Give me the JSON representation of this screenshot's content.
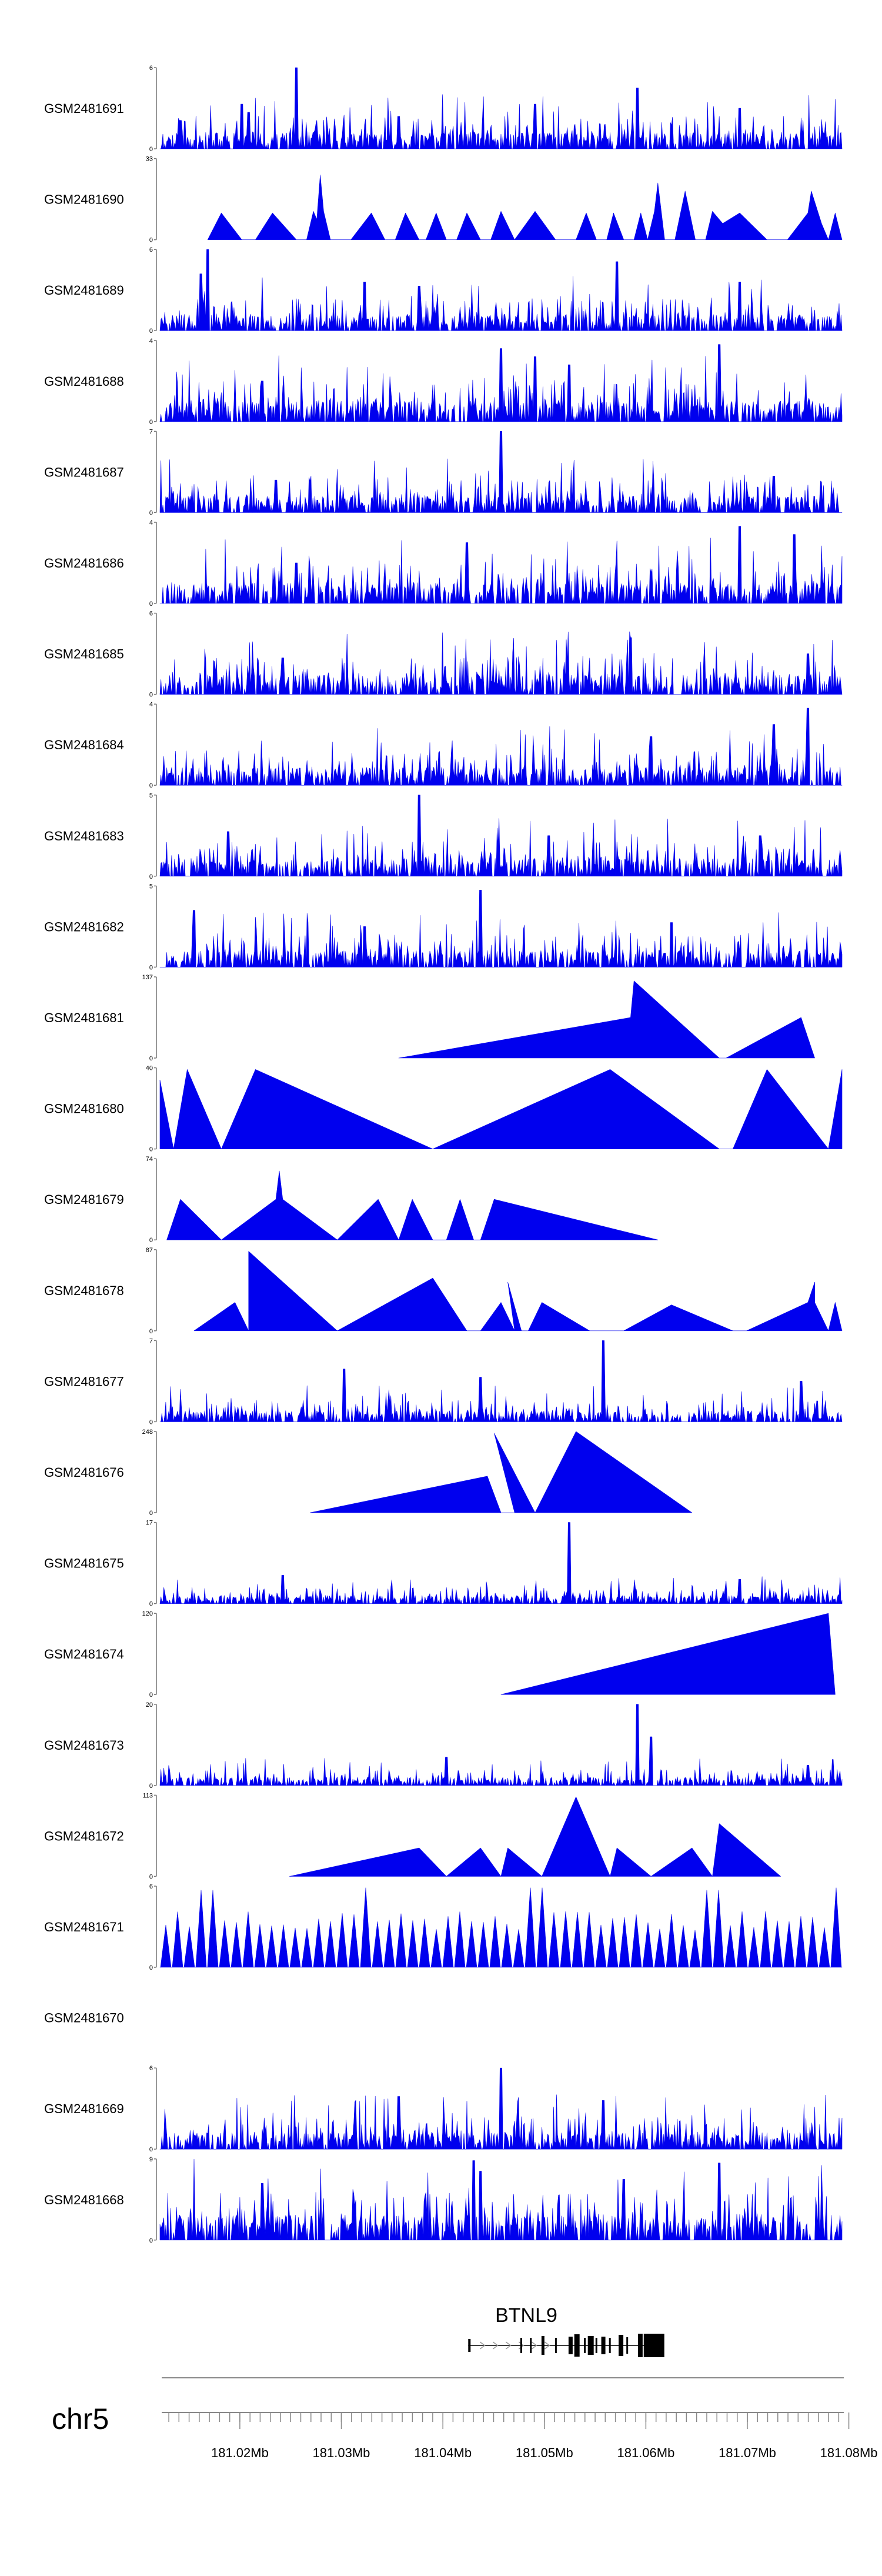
{
  "chart_data": {
    "type": "area",
    "title": "",
    "xlabel": "",
    "ylabel": "",
    "chromosome": "chr5",
    "gene": "BTNL9",
    "gene_region_mb": [
      181.0425,
      181.0615
    ],
    "xlim_mb": [
      181.0123,
      181.0795
    ],
    "x_ticks": [
      "181.02Mb",
      "181.03Mb",
      "181.04Mb",
      "181.05Mb",
      "181.06Mb",
      "181.07Mb",
      "181.08Mb"
    ],
    "x_tick_values_mb": [
      181.02,
      181.03,
      181.04,
      181.05,
      181.06,
      181.07,
      181.08
    ],
    "fill_color": "#0000ee",
    "tracks": [
      {
        "name": "GSM2481691",
        "ymax_label": "6",
        "ymin_label": "0",
        "ymax": 6,
        "style": "dense",
        "seed": 11,
        "base": 0.12,
        "peaks": [
          [
            0.03,
            0.35
          ],
          [
            0.12,
            0.55
          ],
          [
            0.13,
            0.45
          ],
          [
            0.2,
            1.0
          ],
          [
            0.35,
            0.4
          ],
          [
            0.55,
            0.55
          ],
          [
            0.7,
            0.75
          ],
          [
            0.85,
            0.5
          ]
        ]
      },
      {
        "name": "GSM2481690",
        "ymax_label": "33",
        "ymin_label": "0",
        "ymax": 33,
        "style": "triangles",
        "points": [
          [
            0.07,
            0
          ],
          [
            0.09,
            0.33
          ],
          [
            0.12,
            0
          ],
          [
            0.14,
            0
          ],
          [
            0.165,
            0.33
          ],
          [
            0.2,
            0
          ],
          [
            0.215,
            0
          ],
          [
            0.225,
            0.35
          ],
          [
            0.23,
            0.25
          ],
          [
            0.235,
            0.8
          ],
          [
            0.24,
            0.35
          ],
          [
            0.25,
            0
          ],
          [
            0.28,
            0
          ],
          [
            0.31,
            0.33
          ],
          [
            0.33,
            0
          ],
          [
            0.345,
            0
          ],
          [
            0.36,
            0.33
          ],
          [
            0.38,
            0
          ],
          [
            0.39,
            0
          ],
          [
            0.405,
            0.33
          ],
          [
            0.42,
            0
          ],
          [
            0.435,
            0
          ],
          [
            0.45,
            0.33
          ],
          [
            0.47,
            0
          ],
          [
            0.485,
            0
          ],
          [
            0.5,
            0.35
          ],
          [
            0.52,
            0
          ],
          [
            0.55,
            0.35
          ],
          [
            0.58,
            0
          ],
          [
            0.61,
            0
          ],
          [
            0.625,
            0.33
          ],
          [
            0.64,
            0
          ],
          [
            0.655,
            0
          ],
          [
            0.665,
            0.33
          ],
          [
            0.68,
            0
          ],
          [
            0.695,
            0
          ],
          [
            0.705,
            0.33
          ],
          [
            0.715,
            0
          ],
          [
            0.725,
            0.35
          ],
          [
            0.73,
            0.7
          ],
          [
            0.74,
            0
          ],
          [
            0.755,
            0
          ],
          [
            0.77,
            0.6
          ],
          [
            0.785,
            0
          ],
          [
            0.8,
            0
          ],
          [
            0.81,
            0.35
          ],
          [
            0.825,
            0.2
          ],
          [
            0.85,
            0.33
          ],
          [
            0.89,
            0
          ],
          [
            0.92,
            0
          ],
          [
            0.95,
            0.33
          ],
          [
            0.955,
            0.6
          ],
          [
            0.97,
            0.2
          ],
          [
            0.98,
            0
          ],
          [
            0.99,
            0.33
          ],
          [
            1.0,
            0
          ]
        ]
      },
      {
        "name": "GSM2481689",
        "ymax_label": "6",
        "ymin_label": "0",
        "ymax": 6,
        "style": "dense",
        "seed": 23,
        "base": 0.12,
        "peaks": [
          [
            0.07,
            1.0
          ],
          [
            0.06,
            0.7
          ],
          [
            0.3,
            0.6
          ],
          [
            0.38,
            0.55
          ],
          [
            0.67,
            0.85
          ],
          [
            0.85,
            0.6
          ]
        ]
      },
      {
        "name": "GSM2481688",
        "ymax_label": "4",
        "ymin_label": "0",
        "ymax": 4,
        "style": "dense",
        "seed": 37,
        "base": 0.15,
        "peaks": [
          [
            0.15,
            0.5
          ],
          [
            0.5,
            0.9
          ],
          [
            0.55,
            0.8
          ],
          [
            0.6,
            0.7
          ],
          [
            0.82,
            0.95
          ]
        ]
      },
      {
        "name": "GSM2481687",
        "ymax_label": "7",
        "ymin_label": "0",
        "ymax": 7,
        "style": "dense",
        "seed": 41,
        "base": 0.12,
        "peaks": [
          [
            0.5,
            1.0
          ],
          [
            0.17,
            0.4
          ],
          [
            0.9,
            0.45
          ]
        ]
      },
      {
        "name": "GSM2481686",
        "ymax_label": "4",
        "ymin_label": "0",
        "ymax": 4,
        "style": "dense",
        "seed": 53,
        "base": 0.15,
        "peaks": [
          [
            0.45,
            0.75
          ],
          [
            0.85,
            0.95
          ],
          [
            0.93,
            0.85
          ],
          [
            0.2,
            0.5
          ]
        ]
      },
      {
        "name": "GSM2481685",
        "ymax_label": "6",
        "ymin_label": "0",
        "ymax": 6,
        "style": "dense",
        "seed": 67,
        "base": 0.14,
        "peaks": [
          [
            0.69,
            0.7
          ],
          [
            0.18,
            0.45
          ],
          [
            0.95,
            0.5
          ]
        ]
      },
      {
        "name": "GSM2481684",
        "ymax_label": "4",
        "ymin_label": "0",
        "ymax": 4,
        "style": "dense",
        "seed": 71,
        "base": 0.13,
        "peaks": [
          [
            0.95,
            0.95
          ],
          [
            0.9,
            0.75
          ],
          [
            0.72,
            0.6
          ]
        ]
      },
      {
        "name": "GSM2481683",
        "ymax_label": "5",
        "ymin_label": "0",
        "ymax": 5,
        "style": "dense",
        "seed": 83,
        "base": 0.13,
        "peaks": [
          [
            0.38,
            1.0
          ],
          [
            0.1,
            0.55
          ],
          [
            0.57,
            0.5
          ],
          [
            0.88,
            0.5
          ]
        ]
      },
      {
        "name": "GSM2481682",
        "ymax_label": "5",
        "ymin_label": "0",
        "ymax": 5,
        "style": "dense",
        "seed": 97,
        "base": 0.12,
        "peaks": [
          [
            0.47,
            0.95
          ],
          [
            0.05,
            0.7
          ],
          [
            0.75,
            0.55
          ],
          [
            0.3,
            0.5
          ]
        ]
      },
      {
        "name": "GSM2481681",
        "ymax_label": "137",
        "ymin_label": "0",
        "ymax": 137,
        "style": "triangles",
        "points": [
          [
            0.35,
            0
          ],
          [
            0.69,
            0.5
          ],
          [
            0.695,
            0.95
          ],
          [
            0.82,
            0
          ],
          [
            0.83,
            0
          ],
          [
            0.94,
            0.5
          ],
          [
            0.96,
            0
          ]
        ]
      },
      {
        "name": "GSM2481680",
        "ymax_label": "40",
        "ymin_label": "0",
        "ymax": 40,
        "style": "triangles",
        "points": [
          [
            0.0,
            0
          ],
          [
            0.0,
            0.85
          ],
          [
            0.02,
            0
          ],
          [
            0.04,
            0.98
          ],
          [
            0.09,
            0
          ],
          [
            0.14,
            0.98
          ],
          [
            0.4,
            0
          ],
          [
            0.66,
            0.98
          ],
          [
            0.82,
            0
          ],
          [
            0.84,
            0
          ],
          [
            0.89,
            0.98
          ],
          [
            0.98,
            0
          ],
          [
            1.0,
            0.98
          ],
          [
            1.0,
            0
          ]
        ]
      },
      {
        "name": "GSM2481679",
        "ymax_label": "74",
        "ymin_label": "0",
        "ymax": 74,
        "style": "triangles",
        "points": [
          [
            0.01,
            0
          ],
          [
            0.03,
            0.5
          ],
          [
            0.09,
            0
          ],
          [
            0.17,
            0.5
          ],
          [
            0.175,
            0.85
          ],
          [
            0.18,
            0.5
          ],
          [
            0.26,
            0
          ],
          [
            0.32,
            0.5
          ],
          [
            0.35,
            0
          ],
          [
            0.37,
            0.5
          ],
          [
            0.4,
            0
          ],
          [
            0.42,
            0
          ],
          [
            0.44,
            0.5
          ],
          [
            0.46,
            0
          ],
          [
            0.47,
            0
          ],
          [
            0.49,
            0.5
          ],
          [
            0.73,
            0
          ]
        ]
      },
      {
        "name": "GSM2481678",
        "ymax_label": "87",
        "ymin_label": "0",
        "ymax": 87,
        "style": "triangles",
        "points": [
          [
            0.05,
            0
          ],
          [
            0.11,
            0.35
          ],
          [
            0.13,
            0
          ],
          [
            0.13,
            0
          ],
          [
            0.13,
            0.98
          ],
          [
            0.26,
            0
          ],
          [
            0.4,
            0.65
          ],
          [
            0.45,
            0
          ],
          [
            0.47,
            0
          ],
          [
            0.5,
            0.35
          ],
          [
            0.52,
            0
          ],
          [
            0.51,
            0.6
          ],
          [
            0.53,
            0
          ],
          [
            0.54,
            0
          ],
          [
            0.56,
            0.35
          ],
          [
            0.63,
            0
          ],
          [
            0.68,
            0
          ],
          [
            0.75,
            0.32
          ],
          [
            0.84,
            0
          ],
          [
            0.86,
            0
          ],
          [
            0.95,
            0.35
          ],
          [
            0.96,
            0.6
          ],
          [
            0.96,
            0.35
          ],
          [
            0.98,
            0
          ],
          [
            0.98,
            0
          ],
          [
            0.99,
            0.35
          ],
          [
            1.0,
            0
          ]
        ]
      },
      {
        "name": "GSM2481677",
        "ymax_label": "7",
        "ymin_label": "0",
        "ymax": 7,
        "style": "dense",
        "seed": 109,
        "base": 0.08,
        "peaks": [
          [
            0.65,
            1.0
          ],
          [
            0.27,
            0.65
          ],
          [
            0.47,
            0.55
          ],
          [
            0.94,
            0.5
          ]
        ]
      },
      {
        "name": "GSM2481676",
        "ymax_label": "248",
        "ymin_label": "0",
        "ymax": 248,
        "style": "triangles",
        "points": [
          [
            0.22,
            0
          ],
          [
            0.48,
            0.45
          ],
          [
            0.5,
            0
          ],
          [
            0.52,
            0
          ],
          [
            0.49,
            0.98
          ],
          [
            0.55,
            0
          ],
          [
            0.55,
            0
          ],
          [
            0.61,
            1.0
          ],
          [
            0.78,
            0
          ]
        ]
      },
      {
        "name": "GSM2481675",
        "ymax_label": "17",
        "ymin_label": "0",
        "ymax": 17,
        "style": "dense",
        "seed": 127,
        "base": 0.06,
        "peaks": [
          [
            0.6,
            1.0
          ],
          [
            0.18,
            0.35
          ],
          [
            0.85,
            0.3
          ]
        ]
      },
      {
        "name": "GSM2481674",
        "ymax_label": "120",
        "ymin_label": "0",
        "ymax": 120,
        "style": "triangles",
        "points": [
          [
            0.5,
            0
          ],
          [
            0.98,
            1.0
          ],
          [
            0.99,
            0
          ]
        ]
      },
      {
        "name": "GSM2481673",
        "ymax_label": "20",
        "ymin_label": "0",
        "ymax": 20,
        "style": "dense",
        "seed": 139,
        "base": 0.06,
        "peaks": [
          [
            0.7,
            1.0
          ],
          [
            0.72,
            0.6
          ],
          [
            0.42,
            0.35
          ],
          [
            0.95,
            0.25
          ]
        ]
      },
      {
        "name": "GSM2481672",
        "ymax_label": "113",
        "ymin_label": "0",
        "ymax": 113,
        "style": "triangles",
        "points": [
          [
            0.19,
            0
          ],
          [
            0.38,
            0.35
          ],
          [
            0.42,
            0
          ],
          [
            0.47,
            0.35
          ],
          [
            0.5,
            0
          ],
          [
            0.51,
            0.35
          ],
          [
            0.56,
            0
          ],
          [
            0.61,
            0.98
          ],
          [
            0.66,
            0
          ],
          [
            0.67,
            0.35
          ],
          [
            0.72,
            0
          ],
          [
            0.78,
            0.35
          ],
          [
            0.81,
            0
          ],
          [
            0.82,
            0.65
          ],
          [
            0.91,
            0
          ]
        ]
      },
      {
        "name": "GSM2481671",
        "ymax_label": "6",
        "ymin_label": "0",
        "ymax": 6,
        "style": "triangles_regular",
        "seed": 151,
        "count": 58,
        "base": 0.6,
        "peaks": [
          [
            0.07,
            0.95
          ],
          [
            0.3,
            0.98
          ],
          [
            0.55,
            0.98
          ],
          [
            0.81,
            0.95
          ],
          [
            1.0,
            0.98
          ]
        ]
      },
      {
        "name": "GSM2481670",
        "ymax_label": "",
        "ymin_label": "",
        "ymax": 0,
        "style": "empty"
      },
      {
        "name": "GSM2481669",
        "ymax_label": "6",
        "ymin_label": "0",
        "ymax": 6,
        "style": "dense",
        "seed": 163,
        "base": 0.12,
        "peaks": [
          [
            0.5,
            1.0
          ],
          [
            0.35,
            0.65
          ],
          [
            0.65,
            0.6
          ]
        ]
      },
      {
        "name": "GSM2481668",
        "ymax_label": "9",
        "ymin_label": "0",
        "ymax": 9,
        "style": "dense",
        "seed": 179,
        "base": 0.18,
        "peaks": [
          [
            0.46,
            0.98
          ],
          [
            0.47,
            0.85
          ],
          [
            0.82,
            0.95
          ],
          [
            0.68,
            0.75
          ],
          [
            0.15,
            0.7
          ]
        ]
      }
    ]
  }
}
